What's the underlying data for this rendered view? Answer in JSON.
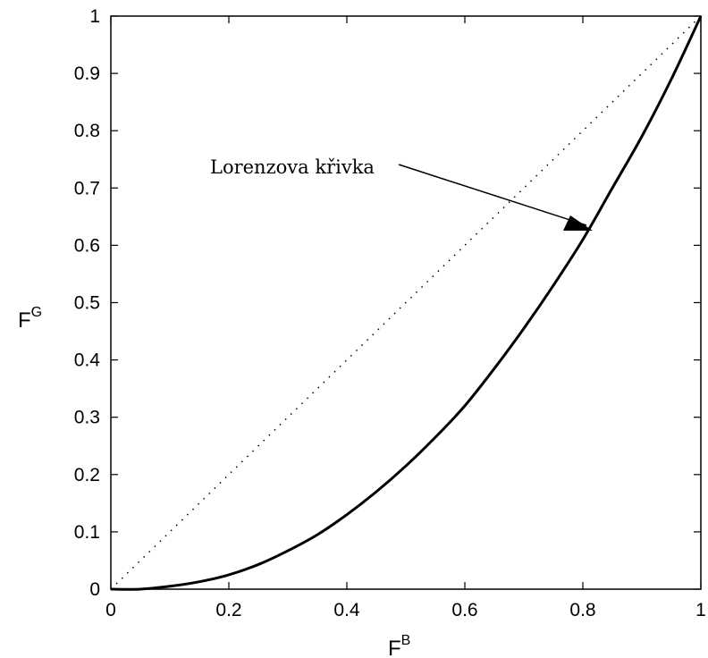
{
  "chart_data": {
    "type": "line",
    "xlabel": "F",
    "xlabel_sup": "B",
    "ylabel": "F",
    "ylabel_sup": "G",
    "xlim": [
      0,
      1
    ],
    "ylim": [
      0,
      1
    ],
    "grid": false,
    "x_ticks": [
      "0",
      "0.2",
      "0.4",
      "0.6",
      "0.8",
      "1"
    ],
    "y_ticks": [
      "0",
      "0.1",
      "0.2",
      "0.3",
      "0.4",
      "0.5",
      "0.6",
      "0.7",
      "0.8",
      "0.9",
      "1"
    ],
    "series": [
      {
        "style": "solid",
        "color": "#000000",
        "x": [
          0.0,
          0.05,
          0.1,
          0.15,
          0.2,
          0.25,
          0.3,
          0.35,
          0.4,
          0.45,
          0.5,
          0.55,
          0.6,
          0.65,
          0.7,
          0.75,
          0.8,
          0.85,
          0.9,
          0.95,
          1.0
        ],
        "y": [
          0.0,
          0.0,
          0.005,
          0.013,
          0.025,
          0.043,
          0.067,
          0.095,
          0.13,
          0.17,
          0.215,
          0.265,
          0.32,
          0.385,
          0.455,
          0.53,
          0.61,
          0.7,
          0.79,
          0.89,
          1.0
        ]
      },
      {
        "style": "dotted",
        "color": "#000000",
        "x": [
          0,
          1
        ],
        "y": [
          0,
          1
        ]
      }
    ],
    "annotations": [
      {
        "text": "Lorenzova křivka",
        "arrow_to": [
          0.82,
          0.62
        ]
      }
    ]
  }
}
